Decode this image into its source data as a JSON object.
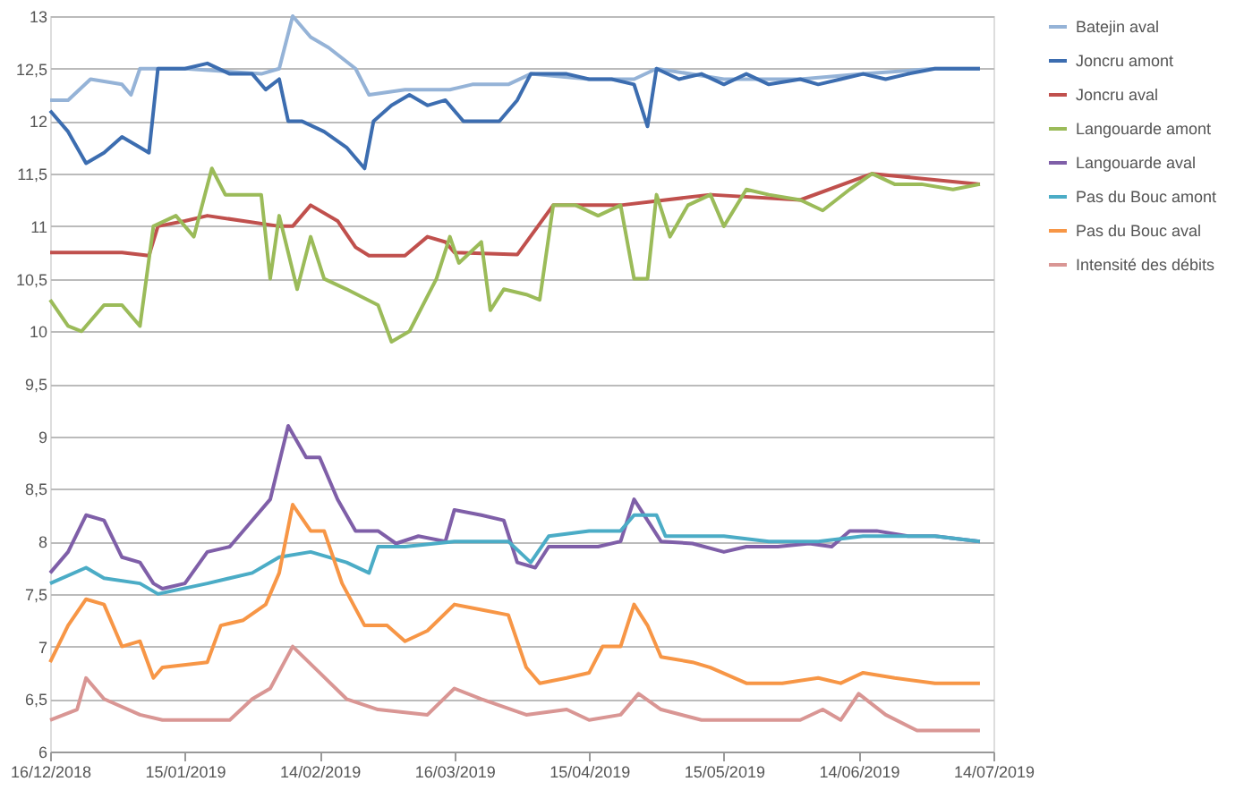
{
  "chart_data": {
    "type": "line",
    "xlim": [
      "2018-12-16",
      "2019-07-14"
    ],
    "xticks": [
      {
        "value": "2018-12-16",
        "label": "16/12/2018"
      },
      {
        "value": "2019-01-15",
        "label": "15/01/2019"
      },
      {
        "value": "2019-02-14",
        "label": "14/02/2019"
      },
      {
        "value": "2019-03-16",
        "label": "16/03/2019"
      },
      {
        "value": "2019-04-15",
        "label": "15/04/2019"
      },
      {
        "value": "2019-05-15",
        "label": "15/05/2019"
      },
      {
        "value": "2019-06-14",
        "label": "14/06/2019"
      },
      {
        "value": "2019-07-14",
        "label": "14/07/2019"
      }
    ],
    "ylim": [
      6,
      13
    ],
    "yticks": [
      {
        "value": 6,
        "label": "6"
      },
      {
        "value": 6.5,
        "label": "6,5"
      },
      {
        "value": 7,
        "label": "7"
      },
      {
        "value": 7.5,
        "label": "7,5"
      },
      {
        "value": 8,
        "label": "8"
      },
      {
        "value": 8.5,
        "label": "8,5"
      },
      {
        "value": 9,
        "label": "9"
      },
      {
        "value": 9.5,
        "label": "9,5"
      },
      {
        "value": 10,
        "label": "10"
      },
      {
        "value": 10.5,
        "label": "10,5"
      },
      {
        "value": 11,
        "label": "11"
      },
      {
        "value": 11.5,
        "label": "11,5"
      },
      {
        "value": 12,
        "label": "12"
      },
      {
        "value": 12.5,
        "label": "12,5"
      },
      {
        "value": 13,
        "label": "13"
      }
    ],
    "grid": "y",
    "legend": "right",
    "marker": "none",
    "line_style": "solid",
    "series": [
      {
        "name": "Batejin aval",
        "color": "#95b3d7",
        "x": [
          "2018-12-16",
          "2018-12-20",
          "2018-12-25",
          "2019-01-01",
          "2019-01-03",
          "2019-01-05",
          "2019-01-15",
          "2019-02-01",
          "2019-02-05",
          "2019-02-08",
          "2019-02-12",
          "2019-02-16",
          "2019-02-22",
          "2019-02-25",
          "2019-03-05",
          "2019-03-15",
          "2019-03-20",
          "2019-03-28",
          "2019-04-02",
          "2019-04-15",
          "2019-04-25",
          "2019-04-30",
          "2019-05-15",
          "2019-06-01",
          "2019-06-15",
          "2019-07-01",
          "2019-07-11"
        ],
        "values": [
          12.2,
          12.2,
          12.4,
          12.35,
          12.25,
          12.5,
          12.5,
          12.45,
          12.5,
          13.0,
          12.8,
          12.7,
          12.5,
          12.25,
          12.3,
          12.3,
          12.35,
          12.35,
          12.45,
          12.4,
          12.4,
          12.5,
          12.4,
          12.4,
          12.45,
          12.5,
          12.5
        ]
      },
      {
        "name": "Joncru amont",
        "color": "#3c6db0",
        "x": [
          "2018-12-16",
          "2018-12-20",
          "2018-12-24",
          "2018-12-28",
          "2019-01-01",
          "2019-01-05",
          "2019-01-07",
          "2019-01-09",
          "2019-01-15",
          "2019-01-20",
          "2019-01-25",
          "2019-01-30",
          "2019-02-02",
          "2019-02-05",
          "2019-02-07",
          "2019-02-10",
          "2019-02-15",
          "2019-02-20",
          "2019-02-24",
          "2019-02-26",
          "2019-03-02",
          "2019-03-06",
          "2019-03-10",
          "2019-03-14",
          "2019-03-18",
          "2019-03-22",
          "2019-03-26",
          "2019-03-30",
          "2019-04-02",
          "2019-04-10",
          "2019-04-15",
          "2019-04-20",
          "2019-04-25",
          "2019-04-28",
          "2019-04-30",
          "2019-05-05",
          "2019-05-10",
          "2019-05-15",
          "2019-05-20",
          "2019-05-25",
          "2019-06-01",
          "2019-06-05",
          "2019-06-10",
          "2019-06-15",
          "2019-06-20",
          "2019-06-25",
          "2019-07-01",
          "2019-07-05",
          "2019-07-11"
        ],
        "values": [
          12.1,
          11.9,
          11.6,
          11.7,
          11.85,
          11.75,
          11.7,
          12.5,
          12.5,
          12.55,
          12.45,
          12.45,
          12.3,
          12.4,
          12.0,
          12.0,
          11.9,
          11.75,
          11.55,
          12.0,
          12.15,
          12.25,
          12.15,
          12.2,
          12.0,
          12.0,
          12.0,
          12.2,
          12.45,
          12.45,
          12.4,
          12.4,
          12.35,
          11.95,
          12.5,
          12.4,
          12.45,
          12.35,
          12.45,
          12.35,
          12.4,
          12.35,
          12.4,
          12.45,
          12.4,
          12.45,
          12.5,
          12.5,
          12.5
        ]
      },
      {
        "name": "Joncru aval",
        "color": "#c0504d",
        "x": [
          "2018-12-16",
          "2019-01-01",
          "2019-01-07",
          "2019-01-09",
          "2019-01-15",
          "2019-01-20",
          "2019-02-05",
          "2019-02-08",
          "2019-02-12",
          "2019-02-18",
          "2019-02-22",
          "2019-02-25",
          "2019-03-05",
          "2019-03-10",
          "2019-03-14",
          "2019-03-16",
          "2019-03-30",
          "2019-04-07",
          "2019-04-22",
          "2019-05-12",
          "2019-06-01",
          "2019-06-17",
          "2019-07-11"
        ],
        "values": [
          10.75,
          10.75,
          10.72,
          11.0,
          11.05,
          11.1,
          11.0,
          11.0,
          11.2,
          11.05,
          10.8,
          10.72,
          10.72,
          10.9,
          10.85,
          10.75,
          10.73,
          11.2,
          11.2,
          11.3,
          11.25,
          11.5,
          11.4
        ]
      },
      {
        "name": "Langouarde amont",
        "color": "#9bbb59",
        "x": [
          "2018-12-16",
          "2018-12-20",
          "2018-12-23",
          "2018-12-28",
          "2019-01-01",
          "2019-01-05",
          "2019-01-08",
          "2019-01-13",
          "2019-01-17",
          "2019-01-21",
          "2019-01-24",
          "2019-02-01",
          "2019-02-03",
          "2019-02-05",
          "2019-02-09",
          "2019-02-12",
          "2019-02-15",
          "2019-02-20",
          "2019-02-27",
          "2019-03-02",
          "2019-03-06",
          "2019-03-12",
          "2019-03-15",
          "2019-03-17",
          "2019-03-22",
          "2019-03-24",
          "2019-03-27",
          "2019-04-01",
          "2019-04-04",
          "2019-04-07",
          "2019-04-12",
          "2019-04-17",
          "2019-04-22",
          "2019-04-25",
          "2019-04-28",
          "2019-04-30",
          "2019-05-03",
          "2019-05-07",
          "2019-05-12",
          "2019-05-15",
          "2019-05-20",
          "2019-05-25",
          "2019-06-01",
          "2019-06-06",
          "2019-06-12",
          "2019-06-17",
          "2019-06-22",
          "2019-06-28",
          "2019-07-05",
          "2019-07-11"
        ],
        "values": [
          10.3,
          10.05,
          10.0,
          10.25,
          10.25,
          10.05,
          11.0,
          11.1,
          10.9,
          11.55,
          11.3,
          11.3,
          10.5,
          11.1,
          10.4,
          10.9,
          10.5,
          10.4,
          10.25,
          9.9,
          10.0,
          10.5,
          10.9,
          10.65,
          10.85,
          10.2,
          10.4,
          10.35,
          10.3,
          11.2,
          11.2,
          11.1,
          11.2,
          10.5,
          10.5,
          11.3,
          10.9,
          11.2,
          11.3,
          11.0,
          11.35,
          11.3,
          11.25,
          11.15,
          11.35,
          11.5,
          11.4,
          11.4,
          11.35,
          11.4
        ]
      },
      {
        "name": "Langouarde aval",
        "color": "#7f5fa8",
        "x": [
          "2018-12-16",
          "2018-12-20",
          "2018-12-24",
          "2018-12-28",
          "2019-01-01",
          "2019-01-05",
          "2019-01-08",
          "2019-01-10",
          "2019-01-15",
          "2019-01-20",
          "2019-01-25",
          "2019-01-29",
          "2019-02-03",
          "2019-02-07",
          "2019-02-11",
          "2019-02-14",
          "2019-02-18",
          "2019-02-22",
          "2019-02-27",
          "2019-03-03",
          "2019-03-08",
          "2019-03-14",
          "2019-03-16",
          "2019-03-22",
          "2019-03-27",
          "2019-03-30",
          "2019-04-03",
          "2019-04-06",
          "2019-04-12",
          "2019-04-17",
          "2019-04-22",
          "2019-04-25",
          "2019-04-28",
          "2019-05-01",
          "2019-05-08",
          "2019-05-15",
          "2019-05-20",
          "2019-05-27",
          "2019-06-03",
          "2019-06-08",
          "2019-06-12",
          "2019-06-18",
          "2019-06-25",
          "2019-07-01",
          "2019-07-11"
        ],
        "values": [
          7.7,
          7.9,
          8.25,
          8.2,
          7.85,
          7.8,
          7.6,
          7.55,
          7.6,
          7.9,
          7.95,
          8.15,
          8.4,
          9.1,
          8.8,
          8.8,
          8.4,
          8.1,
          8.1,
          7.98,
          8.05,
          8.0,
          8.3,
          8.25,
          8.2,
          7.8,
          7.75,
          7.95,
          7.95,
          7.95,
          8.0,
          8.4,
          8.2,
          8.0,
          7.98,
          7.9,
          7.95,
          7.95,
          7.98,
          7.95,
          8.1,
          8.1,
          8.05,
          8.05,
          8.0
        ]
      },
      {
        "name": "Pas du Bouc amont",
        "color": "#4bacc6",
        "x": [
          "2018-12-16",
          "2018-12-24",
          "2018-12-28",
          "2019-01-05",
          "2019-01-09",
          "2019-01-20",
          "2019-01-30",
          "2019-02-05",
          "2019-02-12",
          "2019-02-20",
          "2019-02-25",
          "2019-02-27",
          "2019-03-05",
          "2019-03-16",
          "2019-03-28",
          "2019-04-02",
          "2019-04-06",
          "2019-04-15",
          "2019-04-22",
          "2019-04-25",
          "2019-04-30",
          "2019-05-02",
          "2019-05-15",
          "2019-05-25",
          "2019-06-05",
          "2019-06-15",
          "2019-06-22",
          "2019-07-01",
          "2019-07-11"
        ],
        "values": [
          7.6,
          7.75,
          7.65,
          7.6,
          7.5,
          7.6,
          7.7,
          7.85,
          7.9,
          7.8,
          7.7,
          7.95,
          7.95,
          8.0,
          8.0,
          7.8,
          8.05,
          8.1,
          8.1,
          8.25,
          8.25,
          8.05,
          8.05,
          8.0,
          8.0,
          8.05,
          8.05,
          8.05,
          8.0
        ]
      },
      {
        "name": "Pas du Bouc aval",
        "color": "#f79646",
        "x": [
          "2018-12-16",
          "2018-12-20",
          "2018-12-24",
          "2018-12-28",
          "2019-01-01",
          "2019-01-05",
          "2019-01-08",
          "2019-01-10",
          "2019-01-20",
          "2019-01-23",
          "2019-01-28",
          "2019-02-02",
          "2019-02-05",
          "2019-02-08",
          "2019-02-12",
          "2019-02-15",
          "2019-02-19",
          "2019-02-24",
          "2019-03-01",
          "2019-03-05",
          "2019-03-10",
          "2019-03-16",
          "2019-03-22",
          "2019-03-28",
          "2019-04-01",
          "2019-04-04",
          "2019-04-10",
          "2019-04-15",
          "2019-04-18",
          "2019-04-22",
          "2019-04-25",
          "2019-04-28",
          "2019-05-01",
          "2019-05-08",
          "2019-05-12",
          "2019-05-20",
          "2019-05-28",
          "2019-06-05",
          "2019-06-10",
          "2019-06-15",
          "2019-06-22",
          "2019-07-01",
          "2019-07-11"
        ],
        "values": [
          6.85,
          7.2,
          7.45,
          7.4,
          7.0,
          7.05,
          6.7,
          6.8,
          6.85,
          7.2,
          7.25,
          7.4,
          7.7,
          8.35,
          8.1,
          8.1,
          7.6,
          7.2,
          7.2,
          7.05,
          7.15,
          7.4,
          7.35,
          7.3,
          6.8,
          6.65,
          6.7,
          6.75,
          7.0,
          7.0,
          7.4,
          7.2,
          6.9,
          6.85,
          6.8,
          6.65,
          6.65,
          6.7,
          6.65,
          6.75,
          6.7,
          6.65,
          6.65
        ]
      },
      {
        "name": "Intensité des débits",
        "color": "#d99694",
        "x": [
          "2018-12-16",
          "2018-12-22",
          "2018-12-24",
          "2018-12-28",
          "2019-01-05",
          "2019-01-10",
          "2019-01-25",
          "2019-01-30",
          "2019-02-03",
          "2019-02-08",
          "2019-02-14",
          "2019-02-20",
          "2019-02-27",
          "2019-03-10",
          "2019-03-16",
          "2019-03-22",
          "2019-04-01",
          "2019-04-10",
          "2019-04-15",
          "2019-04-22",
          "2019-04-26",
          "2019-05-01",
          "2019-05-10",
          "2019-05-20",
          "2019-06-01",
          "2019-06-06",
          "2019-06-10",
          "2019-06-14",
          "2019-06-20",
          "2019-06-27",
          "2019-07-11"
        ],
        "values": [
          6.3,
          6.4,
          6.7,
          6.5,
          6.35,
          6.3,
          6.3,
          6.5,
          6.6,
          7.0,
          6.75,
          6.5,
          6.4,
          6.35,
          6.6,
          6.5,
          6.35,
          6.4,
          6.3,
          6.35,
          6.55,
          6.4,
          6.3,
          6.3,
          6.3,
          6.4,
          6.3,
          6.55,
          6.35,
          6.2,
          6.2
        ]
      }
    ]
  }
}
